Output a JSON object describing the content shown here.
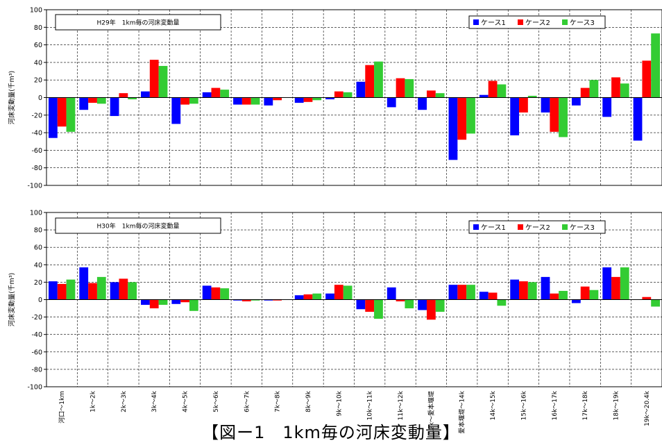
{
  "caption": "【図ー1　1km毎の河床変動量】",
  "colors": {
    "ケース1": "#0000ff",
    "ケース2": "#ff0000",
    "ケース3": "#33cc33"
  },
  "chart_data": [
    {
      "type": "bar",
      "title": "H29年　1km毎の河床変動量",
      "ylabel": "河床変動量(千m³)",
      "ylim": [
        -100,
        100
      ],
      "yticks": [
        -100,
        -80,
        -60,
        -40,
        -20,
        0,
        20,
        40,
        60,
        80,
        100
      ],
      "categories": [
        "河口～1km",
        "1k～2k",
        "2k～3k",
        "3k～4k",
        "4k～5k",
        "5k～6k",
        "6k～7k",
        "7k～8k",
        "8k～9k",
        "9k～10k",
        "10k～11k",
        "11k～12k",
        "12k～愛本堰堤",
        "愛本堰堤～14k",
        "14k～15k",
        "15k～16k",
        "16k～17k",
        "17k～18k",
        "18k～19k",
        "19k～20.4k"
      ],
      "legend_position": "top-right",
      "grid": true,
      "series": [
        {
          "name": "ケース1",
          "values": [
            -46,
            -14,
            -21,
            7,
            -30,
            6,
            -8,
            -9,
            -6,
            -2,
            18,
            -11,
            -14,
            -71,
            3,
            -43,
            -17,
            -9,
            -22,
            -49
          ]
        },
        {
          "name": "ケース2",
          "values": [
            -33,
            -6,
            5,
            43,
            -8,
            11,
            -8,
            -3,
            -5,
            7,
            37,
            22,
            8,
            -48,
            19,
            -17,
            -39,
            11,
            23,
            42
          ]
        },
        {
          "name": "ケース3",
          "values": [
            -39,
            -7,
            -2,
            36,
            -7,
            9,
            -8,
            0,
            -3,
            6,
            41,
            21,
            5,
            -41,
            15,
            2,
            -45,
            20,
            16,
            73
          ]
        }
      ]
    },
    {
      "type": "bar",
      "title": "H30年　1km毎の河床変動量",
      "ylabel": "河床変動量(千m³)",
      "ylim": [
        -100,
        100
      ],
      "yticks": [
        -100,
        -80,
        -60,
        -40,
        -20,
        0,
        20,
        40,
        60,
        80,
        100
      ],
      "categories": [
        "河口～1km",
        "1k～2k",
        "2k～3k",
        "3k～4k",
        "4k～5k",
        "5k～6k",
        "6k～7k",
        "7k～8k",
        "8k～9k",
        "9k～10k",
        "10k～11k",
        "11k～12k",
        "12k～愛本堰堤",
        "愛本堰堤～14k",
        "14k～15k",
        "15k～16k",
        "16k～17k",
        "17k～18k",
        "18k～19k",
        "19k～20.4k"
      ],
      "legend_position": "top-right",
      "grid": true,
      "series": [
        {
          "name": "ケース1",
          "values": [
            21,
            37,
            20,
            -6,
            -5,
            16,
            -1,
            -1,
            5,
            7,
            -11,
            14,
            -12,
            17,
            9,
            23,
            26,
            -4,
            37,
            0
          ]
        },
        {
          "name": "ケース2",
          "values": [
            18,
            19,
            24,
            -10,
            -3,
            14,
            -2,
            -1,
            6,
            17,
            -14,
            -2,
            -23,
            17,
            8,
            21,
            7,
            15,
            26,
            3
          ]
        },
        {
          "name": "ケース3",
          "values": [
            23,
            26,
            20,
            -6,
            -13,
            13,
            -1,
            0,
            7,
            16,
            -22,
            -10,
            -14,
            17,
            -7,
            20,
            10,
            11,
            37,
            -8
          ]
        }
      ]
    }
  ]
}
